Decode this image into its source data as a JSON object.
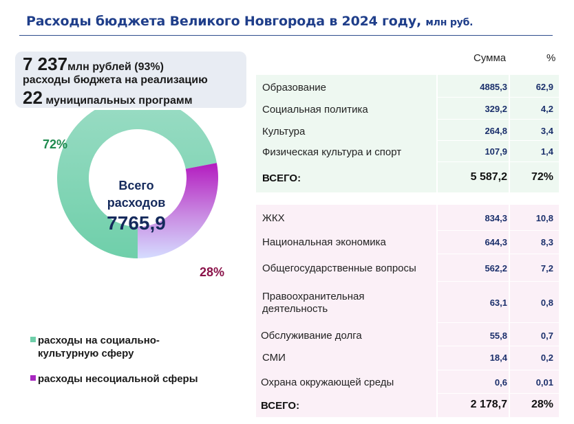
{
  "header": {
    "title": "Расходы бюджета Великого Новгорода в 2024 году,",
    "unit": "млн руб."
  },
  "summary": {
    "amount": "7 237",
    "amount_unit": "млн рублей (93%)",
    "line2": "расходы бюджета  на реализацию",
    "programs_count": "22",
    "programs_text": "муниципальных программ"
  },
  "chart_data": {
    "type": "pie",
    "variant": "donut",
    "center_label": "Всего расходов",
    "center_value": "7765,9",
    "slices": [
      {
        "label": "расходы на социально-культурную сферу",
        "value": 72,
        "display": "72%",
        "color": "#7fd3b4"
      },
      {
        "label": "расходы несоциальной сферы",
        "value": 28,
        "display": "28%",
        "color": "#b02cc6"
      }
    ]
  },
  "legend": [
    {
      "text": "расходы на социально-культурную сферу",
      "color": "#6fcfaa"
    },
    {
      "text": "расходы несоциальной сферы",
      "color": "#a828c0"
    }
  ],
  "table": {
    "col_sum": "Сумма",
    "col_pct": "%",
    "social_rows": [
      {
        "name": "Образование",
        "sum": "4885,3",
        "pct": "62,9"
      },
      {
        "name": "Социальная политика",
        "sum": "329,2",
        "pct": "4,2"
      },
      {
        "name": "Культура",
        "sum": "264,8",
        "pct": "3,4"
      },
      {
        "name": "Физическая культура и спорт",
        "sum": "107,9",
        "pct": "1,4"
      }
    ],
    "social_total": {
      "name": "ВСЕГО:",
      "sum": "5 587,2",
      "pct": "72%"
    },
    "nonsocial_rows": [
      {
        "name": "ЖКХ",
        "sum": "834,3",
        "pct": "10,8"
      },
      {
        "name": "Национальная экономика",
        "sum": "644,3",
        "pct": "8,3"
      },
      {
        "name": "Общегосударственные вопросы",
        "sum": "562,2",
        "pct": "7,2"
      },
      {
        "name": "Правоохранительная деятельность",
        "sum": "63,1",
        "pct": "0,8"
      },
      {
        "name": "Обслуживание долга",
        "sum": "55,8",
        "pct": "0,7"
      },
      {
        "name": "СМИ",
        "sum": "18,4",
        "pct": "0,2"
      },
      {
        "name": "Охрана окружающей среды",
        "sum": "0,6",
        "pct": "0,01"
      }
    ],
    "nonsocial_total": {
      "name": "ВСЕГО:",
      "sum": "2 178,7",
      "pct": "28%"
    }
  }
}
